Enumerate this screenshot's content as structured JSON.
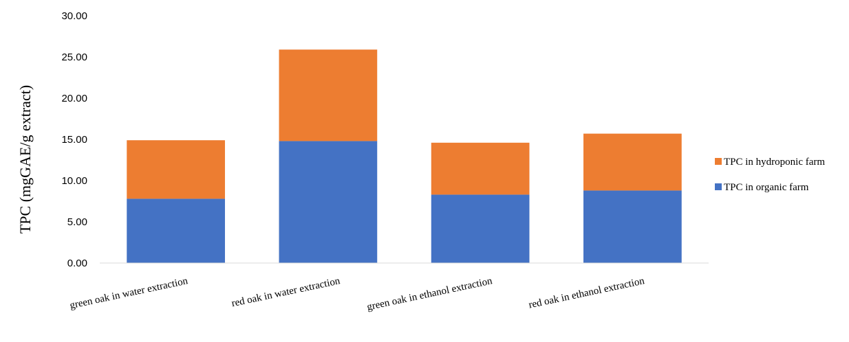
{
  "chart_data": {
    "type": "bar",
    "stacked": true,
    "title": "",
    "xlabel": "",
    "ylabel": "TPC (mgGAE/g extract)",
    "ylim": [
      0,
      30
    ],
    "y_ticks": [
      "0.00",
      "5.00",
      "10.00",
      "15.00",
      "20.00",
      "25.00",
      "30.00"
    ],
    "categories": [
      "green oak in water extraction",
      "red oak in water extraction",
      "green oak in ethanol extraction",
      "red oak in ethanol extraction"
    ],
    "series": [
      {
        "name": "TPC in organic farm",
        "color": "#4472C4",
        "values": [
          7.8,
          14.8,
          8.3,
          8.8
        ]
      },
      {
        "name": "TPC in hydroponic farm",
        "color": "#ED7D31",
        "values": [
          7.1,
          11.1,
          6.3,
          6.9
        ]
      }
    ],
    "legend": {
      "position": "right",
      "order": [
        "TPC in hydroponic farm",
        "TPC in organic farm"
      ]
    },
    "grid": false
  }
}
